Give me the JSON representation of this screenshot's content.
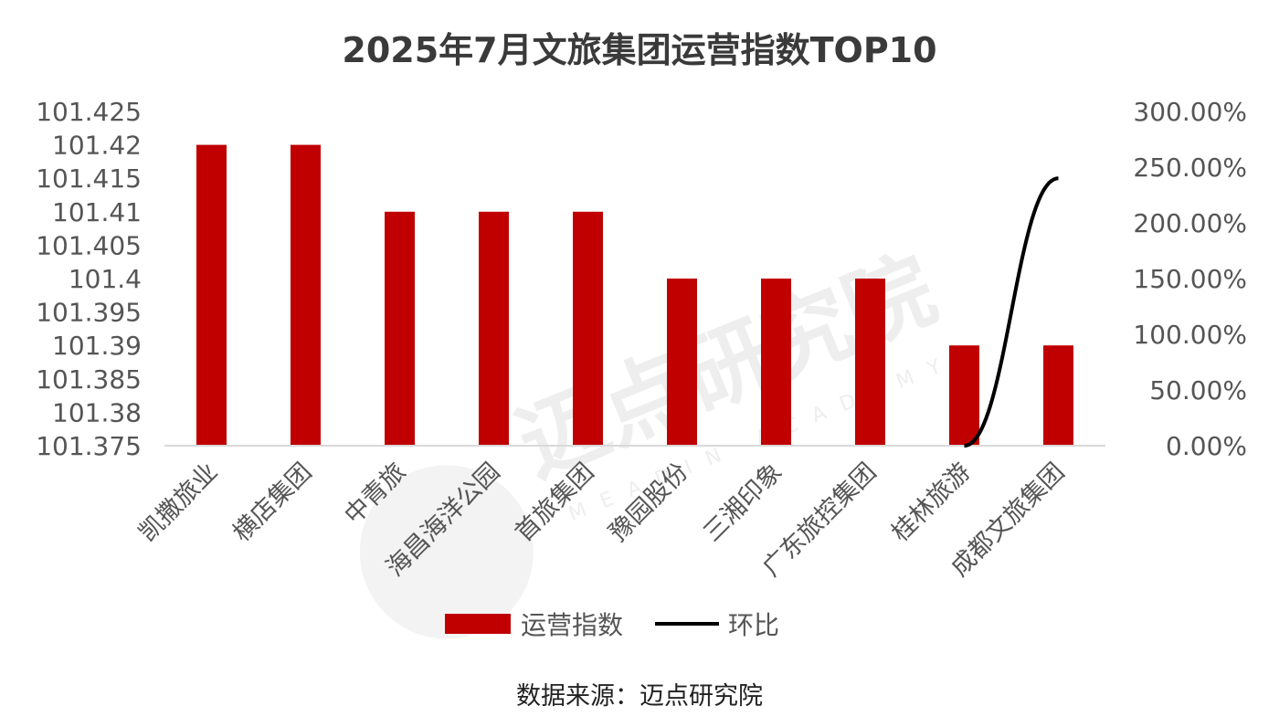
{
  "chart_data": {
    "type": "bar",
    "title": "2025年7月文旅集团运营指数TOP10",
    "categories": [
      "凯撒旅业",
      "横店集团",
      "中青旅",
      "海昌海洋公园",
      "首旅集团",
      "豫园股份",
      "三湘印象",
      "广东旅控集团",
      "桂林旅游",
      "成都文旅集团"
    ],
    "series": [
      {
        "name": "运营指数",
        "type": "bar",
        "axis": "left",
        "color": "#c00000",
        "values": [
          101.42,
          101.42,
          101.41,
          101.41,
          101.41,
          101.4,
          101.4,
          101.4,
          101.39,
          101.39
        ]
      },
      {
        "name": "环比",
        "type": "line",
        "axis": "right",
        "color": "#000000",
        "values": [
          null,
          null,
          null,
          null,
          null,
          null,
          null,
          null,
          0,
          240
        ]
      }
    ],
    "y_left": {
      "min": 101.375,
      "max": 101.425,
      "step": 0.005,
      "tick_labels": [
        "101.375",
        "101.38",
        "101.385",
        "101.39",
        "101.395",
        "101.4",
        "101.405",
        "101.41",
        "101.415",
        "101.42",
        "101.425"
      ]
    },
    "y_right": {
      "min": 0,
      "max": 300,
      "step": 50,
      "unit": "%",
      "tick_labels": [
        "0.00%",
        "50.00%",
        "100.00%",
        "150.00%",
        "200.00%",
        "250.00%",
        "300.00%"
      ]
    },
    "grid": false,
    "legend_position": "bottom"
  },
  "legend": {
    "bar_label": "运营指数",
    "line_label": "环比"
  },
  "source": "数据来源：迈点研究院",
  "watermark": {
    "text": "迈点研究院",
    "subtext": "MEADIN ACADEMY"
  }
}
